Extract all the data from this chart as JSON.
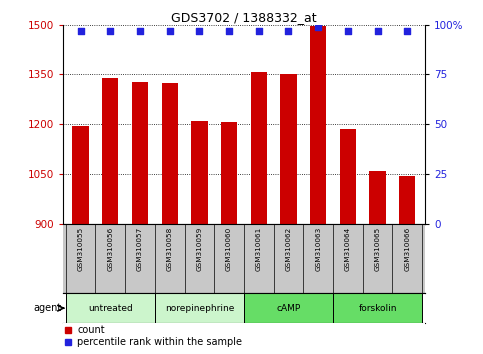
{
  "title": "GDS3702 / 1388332_at",
  "samples": [
    "GSM310055",
    "GSM310056",
    "GSM310057",
    "GSM310058",
    "GSM310059",
    "GSM310060",
    "GSM310061",
    "GSM310062",
    "GSM310063",
    "GSM310064",
    "GSM310065",
    "GSM310066"
  ],
  "counts": [
    1195,
    1340,
    1328,
    1323,
    1210,
    1208,
    1358,
    1350,
    1495,
    1185,
    1058,
    1045
  ],
  "percentiles": [
    97,
    97,
    97,
    97,
    97,
    97,
    97,
    97,
    99,
    97,
    97,
    97
  ],
  "ylim_left": [
    900,
    1500
  ],
  "ylim_right": [
    0,
    100
  ],
  "yticks_left": [
    900,
    1050,
    1200,
    1350,
    1500
  ],
  "yticks_right": [
    0,
    25,
    50,
    75,
    100
  ],
  "bar_color": "#cc0000",
  "dot_color": "#2222dd",
  "bar_width": 0.55,
  "agent_groups": [
    {
      "label": "untreated",
      "start": 0,
      "end": 3,
      "color": "#ccf5cc"
    },
    {
      "label": "norepinephrine",
      "start": 3,
      "end": 6,
      "color": "#ccf5cc"
    },
    {
      "label": "cAMP",
      "start": 6,
      "end": 9,
      "color": "#66dd66"
    },
    {
      "label": "forskolin",
      "start": 9,
      "end": 12,
      "color": "#66dd66"
    }
  ],
  "legend_count_label": "count",
  "legend_pct_label": "percentile rank within the sample",
  "agent_label": "agent",
  "bg_color": "#ffffff",
  "sample_bg": "#c8c8c8",
  "grid_yticks": [
    1050,
    1200,
    1350,
    1500
  ]
}
